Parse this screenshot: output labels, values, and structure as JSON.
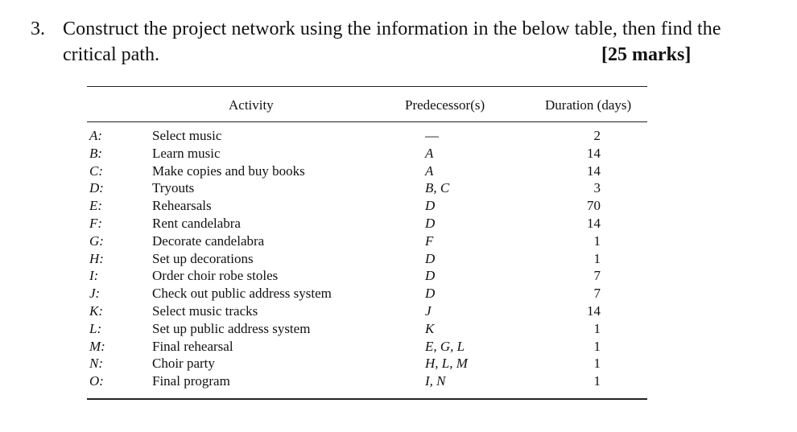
{
  "question": {
    "number": "3.",
    "text_line1": "Construct the project network using the information in the below table, then find the",
    "text_line2": "critical path.",
    "marks": "[25 marks]"
  },
  "table": {
    "headers": {
      "activity": "Activity",
      "predecessors": "Predecessor(s)",
      "duration": "Duration (days)"
    },
    "rows": [
      {
        "letter": "A:",
        "name": "Select music",
        "pred": "—",
        "duration": "2"
      },
      {
        "letter": "B:",
        "name": "Learn music",
        "pred": "A",
        "duration": "14"
      },
      {
        "letter": "C:",
        "name": "Make copies and buy books",
        "pred": "A",
        "duration": "14"
      },
      {
        "letter": "D:",
        "name": "Tryouts",
        "pred": "B, C",
        "duration": "3"
      },
      {
        "letter": "E:",
        "name": "Rehearsals",
        "pred": "D",
        "duration": "70"
      },
      {
        "letter": "F:",
        "name": "Rent candelabra",
        "pred": "D",
        "duration": "14"
      },
      {
        "letter": "G:",
        "name": "Decorate candelabra",
        "pred": "F",
        "duration": "1"
      },
      {
        "letter": "H:",
        "name": "Set up decorations",
        "pred": "D",
        "duration": "1"
      },
      {
        "letter": "I:",
        "name": "Order choir robe stoles",
        "pred": "D",
        "duration": "7"
      },
      {
        "letter": "J:",
        "name": "Check out public address system",
        "pred": "D",
        "duration": "7"
      },
      {
        "letter": "K:",
        "name": "Select music tracks",
        "pred": "J",
        "duration": "14"
      },
      {
        "letter": "L:",
        "name": "Set up public address system",
        "pred": "K",
        "duration": "1"
      },
      {
        "letter": "M:",
        "name": "Final rehearsal",
        "pred": "E, G, L",
        "duration": "1"
      },
      {
        "letter": "N:",
        "name": "Choir party",
        "pred": "H, L, M",
        "duration": "1"
      },
      {
        "letter": "O:",
        "name": "Final program",
        "pred": "I, N",
        "duration": "1"
      }
    ]
  }
}
